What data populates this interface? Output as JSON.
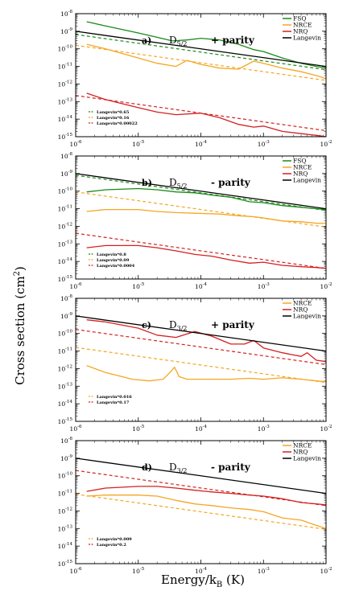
{
  "figure": {
    "xlabel": "Energy/k",
    "xlabel_sub": "B",
    "xlabel_unit": " (K)",
    "ylabel": "Cross section (cm",
    "ylabel_sup": "2",
    "ylabel_end": ")"
  },
  "chart_data": [
    {
      "type": "line",
      "panel_letter": "a)",
      "state": "D",
      "state_sub": "5/2",
      "parity": "+ parity",
      "xscale": "log",
      "yscale": "log",
      "xlim": [
        1e-06,
        0.01
      ],
      "ylim": [
        1e-15,
        1e-08
      ],
      "x_ticks": [
        -6,
        -5,
        -4,
        -3,
        -2
      ],
      "y_ticks": [
        -15,
        -14,
        -13,
        -12,
        -11,
        -10,
        -9,
        -8
      ],
      "legend": [
        "FSQ",
        "NRCE",
        "NRQ",
        "Langevin"
      ],
      "small_legend": [
        "Langevin*0.65",
        "Langevin*0.16",
        "Langevin*0.00022"
      ],
      "series": [
        {
          "name": "FSQ",
          "color": "#1a8a1a",
          "style": "solid",
          "x": [
            1.5e-06,
            3e-06,
            1e-05,
            2e-05,
            3.5e-05,
            6e-05,
            0.0001,
            0.0002,
            0.0004,
            0.0007,
            0.001,
            0.002,
            0.004,
            0.007,
            0.01
          ],
          "y": [
            3.5e-09,
            2e-09,
            8e-10,
            4.5e-10,
            2.8e-10,
            3.2e-10,
            4e-10,
            3.2e-10,
            1.8e-10,
            9e-11,
            7e-11,
            3e-11,
            1.5e-11,
            1e-11,
            8e-12
          ]
        },
        {
          "name": "NRCE",
          "color": "#f5a623",
          "style": "solid",
          "x": [
            1.5e-06,
            3e-06,
            1e-05,
            2e-05,
            4e-05,
            6e-05,
            0.0001,
            0.0002,
            0.0004,
            0.0007,
            0.001,
            0.002,
            0.004,
            0.007,
            0.01
          ],
          "y": [
            1.8e-10,
            1e-10,
            3e-11,
            1.5e-11,
            1e-11,
            2.2e-11,
            1.3e-11,
            8e-12,
            7e-12,
            2e-11,
            1.5e-11,
            8e-12,
            5e-12,
            3e-12,
            2e-12
          ]
        },
        {
          "name": "NRQ",
          "color": "#d42020",
          "style": "solid",
          "x": [
            1.5e-06,
            3e-06,
            1e-05,
            2e-05,
            4e-05,
            0.0001,
            0.0002,
            0.0004,
            0.0007,
            0.001,
            0.002,
            0.004,
            0.007,
            0.01
          ],
          "y": [
            3e-13,
            1.3e-13,
            4.5e-14,
            2.5e-14,
            1.8e-14,
            2.2e-14,
            1.2e-14,
            5e-15,
            3.5e-15,
            4e-15,
            2e-15,
            1.5e-15,
            1.2e-15,
            1e-15
          ]
        },
        {
          "name": "Langevin",
          "color": "#000000",
          "style": "solid",
          "x": [
            1e-06,
            0.01
          ],
          "y": [
            1e-09,
            1e-11
          ]
        },
        {
          "name": "Langevin*0.65",
          "color": "#1a8a1a",
          "style": "dashed",
          "x": [
            1e-06,
            0.01
          ],
          "y": [
            6.5e-10,
            6.5e-12
          ]
        },
        {
          "name": "Langevin*0.16",
          "color": "#f5a623",
          "style": "dashed",
          "x": [
            1e-06,
            0.01
          ],
          "y": [
            1.6e-10,
            1.6e-12
          ]
        },
        {
          "name": "Langevin*0.00022",
          "color": "#d42020",
          "style": "dashed",
          "x": [
            1e-06,
            0.01
          ],
          "y": [
            2.2e-13,
            2.2e-15
          ]
        }
      ]
    },
    {
      "type": "line",
      "panel_letter": "b)",
      "state": "D",
      "state_sub": "5/2",
      "parity": "- parity",
      "xscale": "log",
      "yscale": "log",
      "xlim": [
        1e-06,
        0.01
      ],
      "ylim": [
        1e-15,
        1e-08
      ],
      "x_ticks": [
        -6,
        -5,
        -4,
        -3,
        -2
      ],
      "y_ticks": [
        -15,
        -14,
        -13,
        -12,
        -11,
        -10,
        -9,
        -8
      ],
      "legend": [
        "FSQ",
        "NRCE",
        "NRQ",
        "Langevin"
      ],
      "small_legend": [
        "Langevin*0.8",
        "Langevin*0.09",
        "Langevin*0.0004"
      ],
      "series": [
        {
          "name": "FSQ",
          "color": "#1a8a1a",
          "style": "solid",
          "x": [
            1.5e-06,
            3e-06,
            1e-05,
            2e-05,
            4e-05,
            8e-05,
            0.00015,
            0.0003,
            0.0006,
            0.001,
            0.002,
            0.004,
            0.007,
            0.01
          ],
          "y": [
            9e-11,
            1.2e-10,
            1.4e-10,
            1.2e-10,
            9e-11,
            8e-11,
            6e-11,
            4.5e-11,
            2.5e-11,
            2.2e-11,
            1.5e-11,
            1.2e-11,
            1e-11,
            9e-12
          ]
        },
        {
          "name": "NRCE",
          "color": "#f5a623",
          "style": "solid",
          "x": [
            1.5e-06,
            3e-06,
            1e-05,
            2e-05,
            4e-05,
            8e-05,
            0.0002,
            0.0004,
            0.0007,
            0.001,
            0.002,
            0.004,
            0.007,
            0.01
          ],
          "y": [
            7e-12,
            9e-12,
            9e-12,
            7e-12,
            6e-12,
            5.5e-12,
            5e-12,
            4e-12,
            3.5e-12,
            3e-12,
            2e-12,
            1.8e-12,
            1.5e-12,
            1.5e-12
          ]
        },
        {
          "name": "NRQ",
          "color": "#d42020",
          "style": "solid",
          "x": [
            1.5e-06,
            3e-06,
            1e-05,
            2e-05,
            4e-05,
            8e-05,
            0.00015,
            0.0003,
            0.0006,
            0.001,
            0.002,
            0.004,
            0.007,
            0.01
          ],
          "y": [
            6e-14,
            8e-14,
            8e-14,
            6e-14,
            4e-14,
            2.5e-14,
            2e-14,
            1.2e-14,
            8e-15,
            9e-15,
            6e-15,
            5e-15,
            4.5e-15,
            4e-15
          ]
        },
        {
          "name": "Langevin",
          "color": "#000000",
          "style": "solid",
          "x": [
            1e-06,
            0.01
          ],
          "y": [
            1e-09,
            1e-11
          ]
        },
        {
          "name": "Langevin*0.8",
          "color": "#1a8a1a",
          "style": "dashed",
          "x": [
            1e-06,
            0.01
          ],
          "y": [
            8e-10,
            8e-12
          ]
        },
        {
          "name": "Langevin*0.09",
          "color": "#f5a623",
          "style": "dashed",
          "x": [
            1e-06,
            0.01
          ],
          "y": [
            9e-11,
            9e-13
          ]
        },
        {
          "name": "Langevin*0.0004",
          "color": "#d42020",
          "style": "dashed",
          "x": [
            1e-06,
            0.01
          ],
          "y": [
            4e-13,
            4e-15
          ]
        }
      ]
    },
    {
      "type": "line",
      "panel_letter": "c)",
      "state": "D",
      "state_sub": "3/2",
      "parity": "+ parity",
      "xscale": "log",
      "yscale": "log",
      "xlim": [
        1e-06,
        0.01
      ],
      "ylim": [
        1e-15,
        1e-08
      ],
      "x_ticks": [
        -6,
        -5,
        -4,
        -3,
        -2
      ],
      "y_ticks": [
        -15,
        -14,
        -13,
        -12,
        -11,
        -10,
        -9,
        -8
      ],
      "legend": [
        "NRCE",
        "NRQ",
        "Langevin"
      ],
      "small_legend": [
        "Langevin*0.016",
        "Langevin*0.17"
      ],
      "series": [
        {
          "name": "NRCE",
          "color": "#f5a623",
          "style": "solid",
          "x": [
            1.5e-06,
            3e-06,
            8e-06,
            1.5e-05,
            2.5e-05,
            3.2e-05,
            3.8e-05,
            4.5e-05,
            6e-05,
            0.0001,
            0.0003,
            0.0006,
            0.001,
            0.002,
            0.004,
            0.007,
            0.01
          ],
          "y": [
            1.5e-12,
            6e-13,
            2.5e-13,
            2e-13,
            2.5e-13,
            6e-13,
            1.2e-12,
            3.5e-13,
            2.5e-13,
            2.5e-13,
            2.5e-13,
            2.8e-13,
            2.5e-13,
            3e-13,
            2.5e-13,
            2e-13,
            1.8e-13
          ]
        },
        {
          "name": "NRQ",
          "color": "#d42020",
          "style": "solid",
          "x": [
            1.5e-06,
            3e-06,
            1e-05,
            2e-05,
            4e-05,
            8e-05,
            0.00015,
            0.0003,
            0.0005,
            0.0007,
            0.001,
            0.002,
            0.003,
            0.004,
            0.005,
            0.007,
            0.01
          ],
          "y": [
            6e-10,
            4.5e-10,
            2e-10,
            8e-11,
            6e-11,
            1.3e-10,
            7e-11,
            2.5e-11,
            2.5e-11,
            4e-11,
            1.5e-11,
            8e-12,
            6e-12,
            5e-12,
            8e-12,
            3e-12,
            2.5e-12
          ]
        },
        {
          "name": "Langevin",
          "color": "#000000",
          "style": "solid",
          "x": [
            1e-06,
            0.01
          ],
          "y": [
            1e-09,
            1e-11
          ]
        },
        {
          "name": "Langevin*0.016",
          "color": "#f5a623",
          "style": "dashed",
          "x": [
            1e-06,
            0.01
          ],
          "y": [
            1.6e-11,
            1.6e-13
          ]
        },
        {
          "name": "Langevin*0.17",
          "color": "#d42020",
          "style": "dashed",
          "x": [
            1e-06,
            0.01
          ],
          "y": [
            1.7e-10,
            1.7e-12
          ]
        }
      ]
    },
    {
      "type": "line",
      "panel_letter": "d)",
      "state": "D",
      "state_sub": "3/2",
      "parity": "- parity",
      "xscale": "log",
      "yscale": "log",
      "xlim": [
        1e-06,
        0.01
      ],
      "ylim": [
        1e-15,
        1e-08
      ],
      "x_ticks": [
        -6,
        -5,
        -4,
        -3,
        -2
      ],
      "y_ticks": [
        -15,
        -14,
        -13,
        -12,
        -11,
        -10,
        -9,
        -8
      ],
      "legend": [
        "NRCE",
        "NRQ",
        "Langevin"
      ],
      "small_legend": [
        "Langevin*0.009",
        "Langevin*0.2"
      ],
      "series": [
        {
          "name": "NRCE",
          "color": "#f5a623",
          "style": "solid",
          "x": [
            1.5e-06,
            3e-06,
            1e-05,
            2e-05,
            4e-05,
            8e-05,
            0.00015,
            0.0003,
            0.0006,
            0.001,
            0.002,
            0.004,
            0.007,
            0.01
          ],
          "y": [
            7e-12,
            8e-12,
            8e-12,
            7e-12,
            4e-12,
            2.5e-12,
            2e-12,
            1.5e-12,
            1.2e-12,
            9e-13,
            4e-13,
            3e-13,
            1.5e-13,
            1e-13
          ]
        },
        {
          "name": "NRQ",
          "color": "#d42020",
          "style": "solid",
          "x": [
            1.5e-06,
            3e-06,
            1e-05,
            2e-05,
            4e-05,
            8e-05,
            0.00015,
            0.0003,
            0.0006,
            0.001,
            0.002,
            0.004,
            0.007,
            0.01
          ],
          "y": [
            1.3e-11,
            2e-11,
            2.5e-11,
            2.5e-11,
            2e-11,
            1.5e-11,
            1.2e-11,
            1e-11,
            8e-12,
            7e-12,
            5e-12,
            3e-12,
            2.5e-12,
            2.2e-12
          ]
        },
        {
          "name": "Langevin",
          "color": "#000000",
          "style": "solid",
          "x": [
            1e-06,
            0.01
          ],
          "y": [
            1e-09,
            1e-11
          ]
        },
        {
          "name": "Langevin*0.009",
          "color": "#f5a623",
          "style": "dashed",
          "x": [
            1e-06,
            0.01
          ],
          "y": [
            9e-12,
            9e-14
          ]
        },
        {
          "name": "Langevin*0.2",
          "color": "#d42020",
          "style": "dashed",
          "x": [
            1e-06,
            0.01
          ],
          "y": [
            2e-10,
            2e-12
          ]
        }
      ]
    }
  ]
}
